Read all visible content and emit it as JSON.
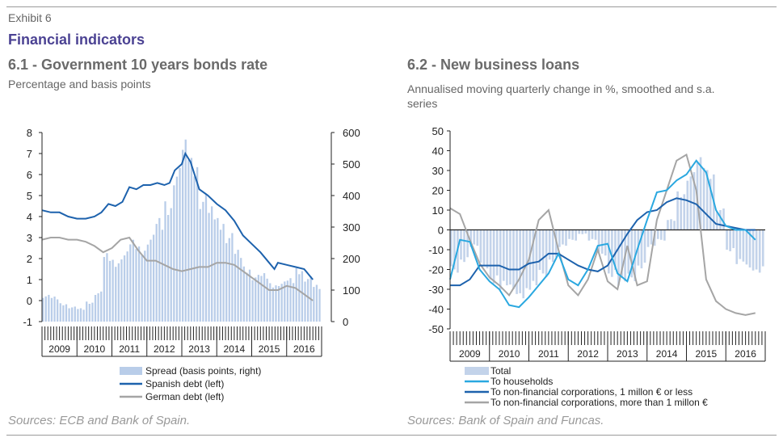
{
  "exhibit_label": "Exhibit 6",
  "title": "Financial indicators",
  "colors": {
    "spread": "#b9cde9",
    "spanish": "#1d62ad",
    "german": "#a5a5a5",
    "total": "#c3d3ea",
    "households": "#2aa8e0",
    "nfc_small": "#1d62ad",
    "nfc_large": "#a5a5a5"
  },
  "chart_data": [
    {
      "type": "bar+line",
      "title": "6.1 - Government 10 years bonds rate",
      "subtitle": "Percentage and basis points",
      "x_range": [
        2008.5,
        2016.5
      ],
      "categories": [
        "2009",
        "2010",
        "2011",
        "2012",
        "2013",
        "2014",
        "2015",
        "2016"
      ],
      "ylim_left": [
        -1,
        8
      ],
      "yticks_left": [
        "-1",
        "0",
        "1",
        "2",
        "3",
        "4",
        "5",
        "6",
        "7",
        "8"
      ],
      "ylim_right": [
        0,
        600
      ],
      "yticks_right": [
        "0",
        "100",
        "200",
        "300",
        "400",
        "500",
        "600"
      ],
      "grid": false,
      "legend_position": "bottom",
      "source": "Sources: ECB and Bank of Spain.",
      "series": [
        {
          "name": "Spread (basis points, right)",
          "type": "bar",
          "axis": "right",
          "x": [
            2008.5,
            2008.75,
            2009,
            2009.25,
            2009.5,
            2009.75,
            2010,
            2010.25,
            2010.5,
            2010.75,
            2011,
            2011.25,
            2011.5,
            2011.75,
            2012,
            2012.25,
            2012.5,
            2012.75,
            2013,
            2013.25,
            2013.5,
            2013.75,
            2014,
            2014.25,
            2014.5,
            2014.75,
            2015,
            2015.25,
            2015.5,
            2015.75,
            2016,
            2016.25
          ],
          "values": [
            80,
            75,
            55,
            45,
            40,
            60,
            90,
            205,
            185,
            210,
            245,
            225,
            260,
            310,
            360,
            460,
            545,
            490,
            380,
            345,
            310,
            265,
            215,
            165,
            140,
            145,
            115,
            120,
            130,
            160,
            135,
            110
          ]
        },
        {
          "name": "Spanish debt (left)",
          "type": "line",
          "axis": "left",
          "x": [
            2008.5,
            2008.75,
            2009,
            2009.25,
            2009.5,
            2009.75,
            2010,
            2010.2,
            2010.4,
            2010.6,
            2010.8,
            2011,
            2011.2,
            2011.4,
            2011.6,
            2011.8,
            2012,
            2012.15,
            2012.3,
            2012.5,
            2012.6,
            2012.75,
            2013,
            2013.25,
            2013.5,
            2013.75,
            2014,
            2014.25,
            2014.5,
            2014.75,
            2015,
            2015.15,
            2015.25,
            2015.5,
            2015.75,
            2016,
            2016.25
          ],
          "values": [
            4.3,
            4.2,
            4.2,
            4.0,
            3.9,
            3.9,
            4.0,
            4.2,
            4.6,
            4.5,
            4.7,
            5.4,
            5.3,
            5.5,
            5.5,
            5.6,
            5.5,
            5.6,
            6.2,
            6.5,
            7.0,
            6.6,
            5.3,
            5.0,
            4.6,
            4.3,
            3.8,
            3.1,
            2.7,
            2.3,
            1.8,
            1.5,
            1.8,
            1.7,
            1.6,
            1.5,
            1.0
          ]
        },
        {
          "name": "German debt (left)",
          "type": "line",
          "axis": "left",
          "x": [
            2008.5,
            2008.75,
            2009,
            2009.25,
            2009.5,
            2009.75,
            2010,
            2010.25,
            2010.5,
            2010.75,
            2011,
            2011.25,
            2011.5,
            2011.75,
            2012,
            2012.25,
            2012.5,
            2012.75,
            2013,
            2013.25,
            2013.5,
            2013.75,
            2014,
            2014.25,
            2014.5,
            2014.75,
            2015,
            2015.25,
            2015.5,
            2015.75,
            2016,
            2016.25
          ],
          "values": [
            2.9,
            3.0,
            3.0,
            2.9,
            2.9,
            2.8,
            2.6,
            2.3,
            2.5,
            2.9,
            3.0,
            2.4,
            1.9,
            1.9,
            1.7,
            1.5,
            1.4,
            1.5,
            1.6,
            1.6,
            1.8,
            1.8,
            1.7,
            1.4,
            1.1,
            0.8,
            0.5,
            0.5,
            0.7,
            0.6,
            0.3,
            0.0
          ]
        }
      ]
    },
    {
      "type": "bar+line",
      "title": "6.2 - New business loans",
      "subtitle": "Annualised moving quarterly change in %, smoothed and s.a. series",
      "x_range": [
        2008.5,
        2016.5
      ],
      "categories": [
        "2009",
        "2010",
        "2011",
        "2012",
        "2013",
        "2014",
        "2015",
        "2016"
      ],
      "ylim": [
        -50,
        50
      ],
      "yticks": [
        "-50",
        "-40",
        "-30",
        "-20",
        "-10",
        "0",
        "10",
        "20",
        "30",
        "40",
        "50"
      ],
      "grid": false,
      "legend_position": "bottom",
      "source": "Sources: Bank of Spain and Funcas.",
      "series": [
        {
          "name": "Total",
          "type": "bar",
          "x": [
            2008.5,
            2008.75,
            2009,
            2009.25,
            2009.5,
            2009.75,
            2010,
            2010.25,
            2010.5,
            2010.75,
            2011,
            2011.25,
            2011.5,
            2011.75,
            2012,
            2012.25,
            2012.5,
            2012.75,
            2013,
            2013.25,
            2013.5,
            2013.75,
            2014,
            2014.25,
            2014.5,
            2014.75,
            2015,
            2015.25,
            2015.5,
            2015.75,
            2016,
            2016.25
          ],
          "values": [
            -20,
            -15,
            -8,
            -18,
            -25,
            -28,
            -30,
            -32,
            -28,
            -22,
            -15,
            -8,
            -5,
            -2,
            -5,
            -12,
            -22,
            -26,
            -24,
            -18,
            -8,
            -5,
            5,
            18,
            27,
            34,
            28,
            10,
            -10,
            -16,
            -19,
            -20
          ]
        },
        {
          "name": "To households",
          "type": "line",
          "x": [
            2008.5,
            2008.75,
            2009,
            2009.25,
            2009.5,
            2009.75,
            2010,
            2010.25,
            2010.5,
            2010.75,
            2011,
            2011.25,
            2011.5,
            2011.75,
            2012,
            2012.25,
            2012.5,
            2012.75,
            2013,
            2013.25,
            2013.5,
            2013.75,
            2014,
            2014.25,
            2014.5,
            2014.75,
            2015,
            2015.25,
            2015.5,
            2015.75,
            2016,
            2016.25
          ],
          "values": [
            -25,
            -5,
            -6,
            -20,
            -26,
            -30,
            -38,
            -39,
            -34,
            -28,
            -22,
            -12,
            -25,
            -28,
            -20,
            -8,
            -7,
            -22,
            -26,
            -10,
            5,
            19,
            20,
            25,
            28,
            35,
            29,
            10,
            2,
            0,
            0,
            -5
          ]
        },
        {
          "name": "To non-financial corporations, 1 millon € or less",
          "type": "line",
          "x": [
            2008.5,
            2008.75,
            2009,
            2009.25,
            2009.5,
            2009.75,
            2010,
            2010.25,
            2010.5,
            2010.75,
            2011,
            2011.25,
            2011.5,
            2011.75,
            2012,
            2012.25,
            2012.5,
            2012.75,
            2013,
            2013.25,
            2013.5,
            2013.75,
            2014,
            2014.25,
            2014.5,
            2014.75,
            2015,
            2015.25,
            2015.5,
            2015.75,
            2016,
            2016.25
          ],
          "values": [
            -28,
            -28,
            -25,
            -18,
            -18,
            -18,
            -20,
            -20,
            -17,
            -16,
            -12,
            -12,
            -15,
            -18,
            -20,
            -21,
            -18,
            -10,
            -2,
            5,
            9,
            10,
            14,
            16,
            15,
            13,
            8,
            3,
            2,
            1,
            0,
            0
          ]
        },
        {
          "name": "To non-financial corporations, more than 1 millon €",
          "type": "line",
          "x": [
            2008.5,
            2008.75,
            2009,
            2009.25,
            2009.5,
            2009.75,
            2010,
            2010.25,
            2010.5,
            2010.75,
            2011,
            2011.25,
            2011.5,
            2011.75,
            2012,
            2012.25,
            2012.5,
            2012.75,
            2013,
            2013.25,
            2013.5,
            2013.75,
            2014,
            2014.25,
            2014.5,
            2014.75,
            2015,
            2015.25,
            2015.5,
            2015.75,
            2016,
            2016.25
          ],
          "values": [
            11,
            8,
            -5,
            -17,
            -24,
            -28,
            -33,
            -25,
            -15,
            5,
            10,
            -10,
            -28,
            -33,
            -25,
            -10,
            -26,
            -30,
            -8,
            -28,
            -26,
            5,
            20,
            35,
            38,
            20,
            -25,
            -36,
            -40,
            -42,
            -43,
            -42
          ]
        }
      ]
    }
  ]
}
